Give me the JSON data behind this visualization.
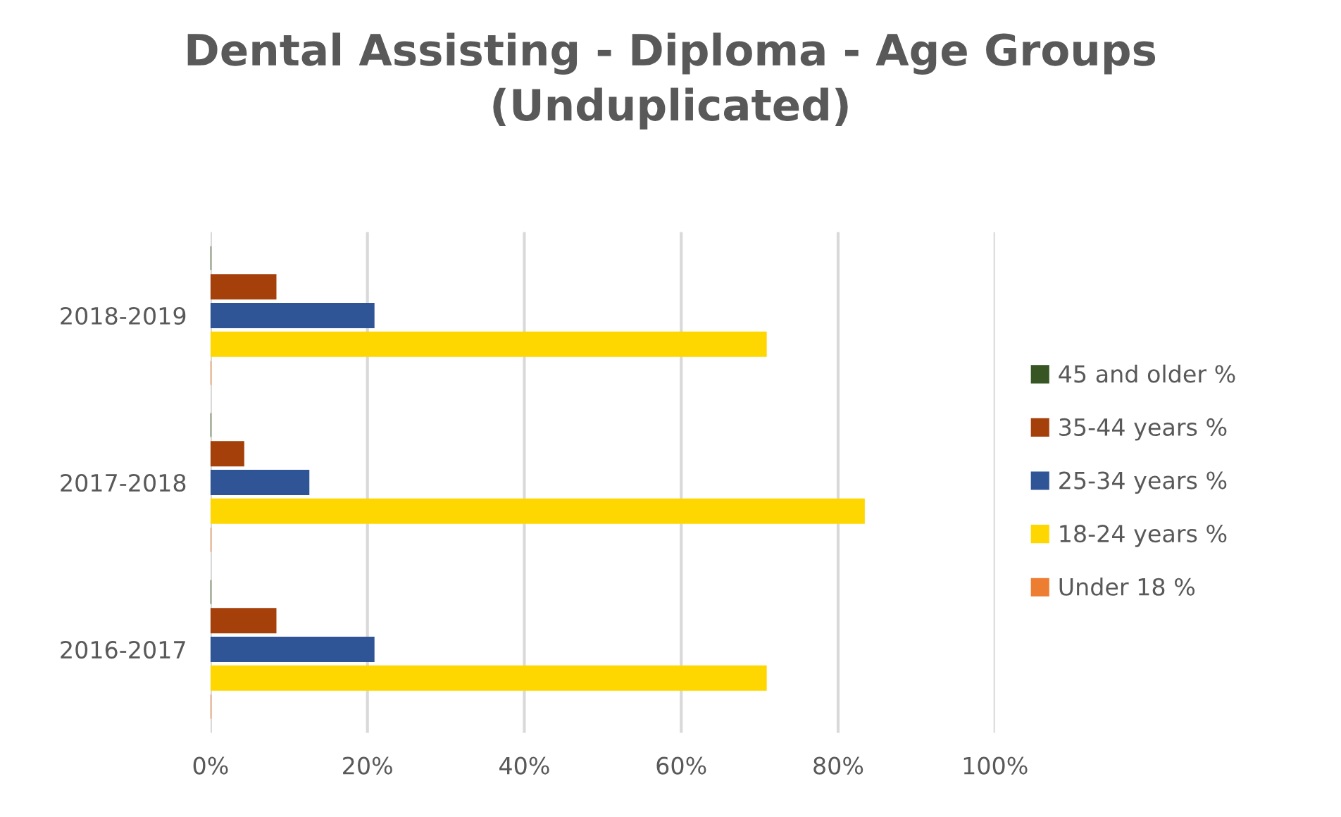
{
  "chart_data": {
    "type": "bar",
    "orientation": "horizontal",
    "title": "Dental Assisting - Diploma - Age Groups\n(Unduplicated)",
    "categories": [
      "2018-2019",
      "2017-2018",
      "2016-2017"
    ],
    "series": [
      {
        "name": "Under 18 %",
        "color": "#ed7d31",
        "values": [
          0,
          0,
          0
        ]
      },
      {
        "name": "18-24 years %",
        "color": "#ffd700",
        "values": [
          70.8,
          83.3,
          70.8
        ]
      },
      {
        "name": "25-34 years %",
        "color": "#2f5597",
        "values": [
          20.8,
          12.5,
          20.8
        ]
      },
      {
        "name": "35-44 years %",
        "color": "#a5400a",
        "values": [
          8.3,
          4.2,
          8.3
        ]
      },
      {
        "name": "45 and older %",
        "color": "#375623",
        "values": [
          0,
          0,
          0
        ]
      }
    ],
    "xlim": [
      0,
      100
    ],
    "xticks": [
      {
        "value": 0,
        "label": "0%"
      },
      {
        "value": 20,
        "label": "20%"
      },
      {
        "value": 40,
        "label": "40%"
      },
      {
        "value": 60,
        "label": "60%"
      },
      {
        "value": 80,
        "label": "80%"
      },
      {
        "value": 100,
        "label": "100%"
      }
    ],
    "grid": "x",
    "legend": "right"
  }
}
